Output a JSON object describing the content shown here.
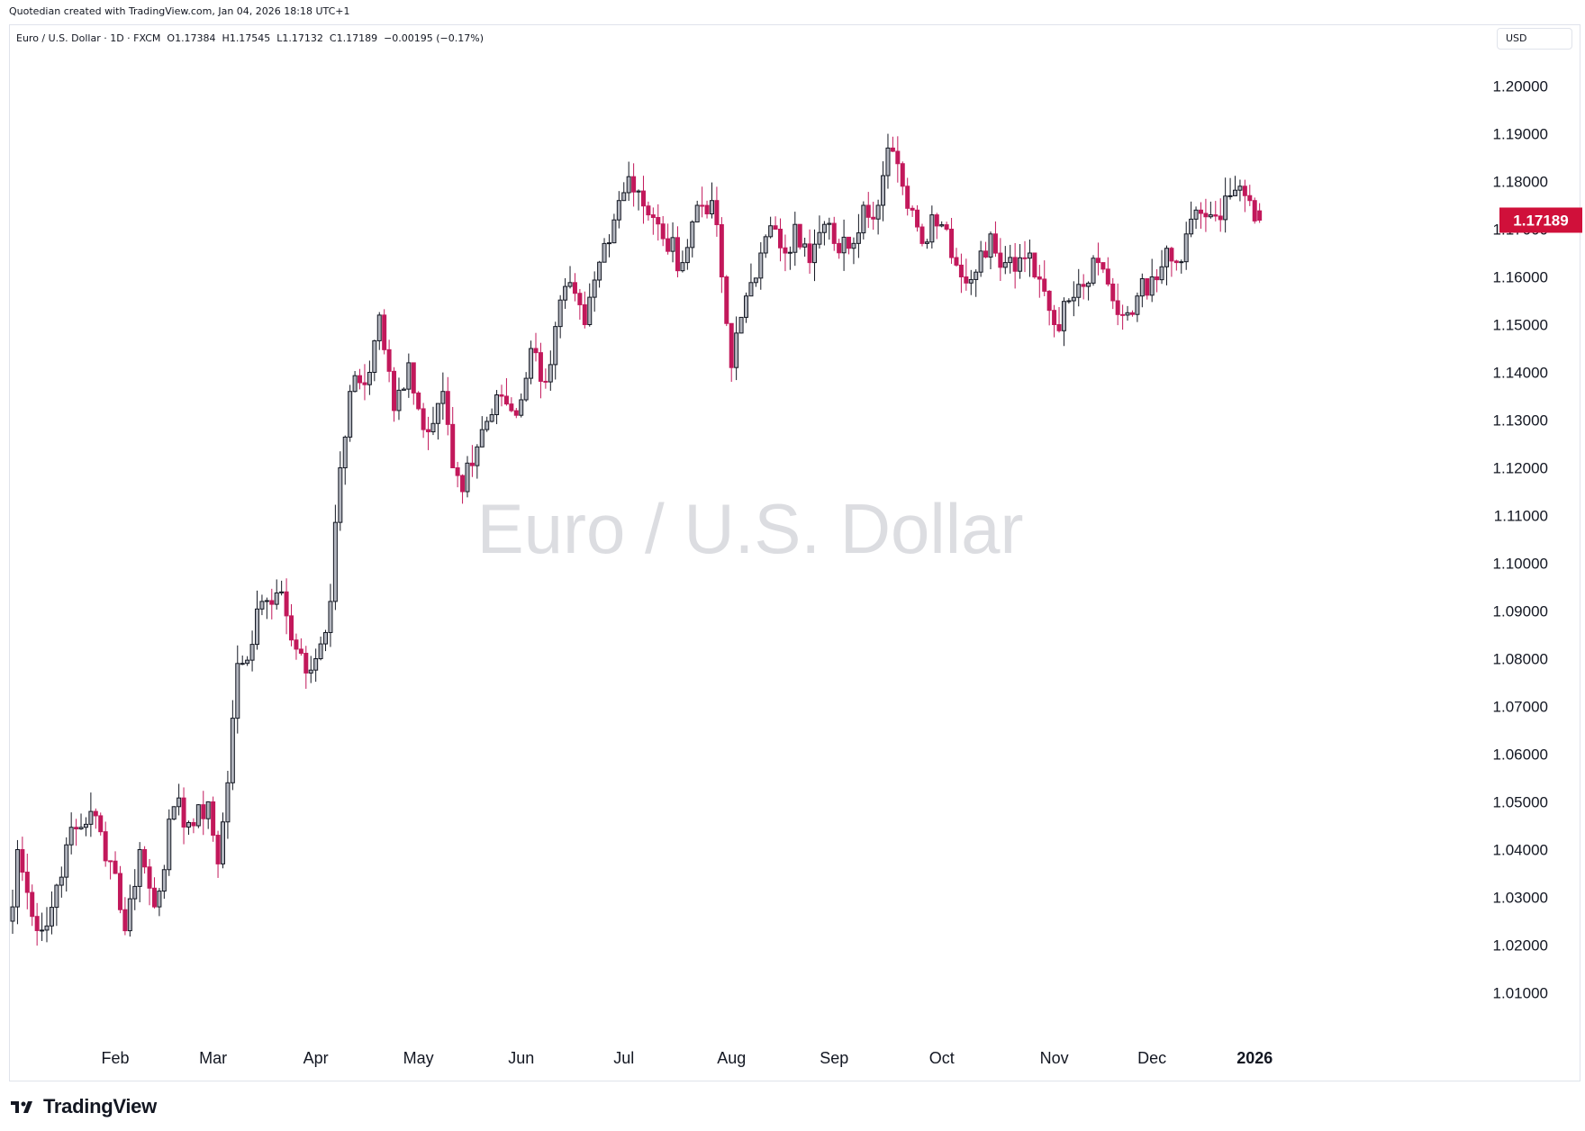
{
  "header": {
    "credit": "Quotedian created with TradingView.com, Jan 04, 2026 18:18 UTC+1",
    "legend": "Euro / U.S. Dollar · 1D · FXCM  O1.17384  H1.17545  L1.17132  C1.17189  −0.00195 (−0.17%)",
    "currency": "USD"
  },
  "watermark": "Euro / U.S. Dollar",
  "footer": {
    "brand": "TradingView",
    "logo_icon": "tradingview-logo-icon"
  },
  "colors": {
    "up_body": "#b2b5be",
    "up_border": "#131722",
    "down": "#c2185b",
    "last_price_bg": "#d0103a",
    "grid": "#ffffff",
    "text": "#131722"
  },
  "chart_data": {
    "type": "candlestick",
    "symbol": "Euro / U.S. Dollar",
    "interval": "1D",
    "broker": "FXCM",
    "last": {
      "open": 1.17384,
      "high": 1.17545,
      "low": 1.17132,
      "close": 1.17189,
      "change": -0.00195,
      "change_pct": -0.17,
      "label": "1.17189"
    },
    "ylim": [
      1.0,
      1.21
    ],
    "y_ticks": [
      "1.01000",
      "1.02000",
      "1.03000",
      "1.04000",
      "1.05000",
      "1.06000",
      "1.07000",
      "1.08000",
      "1.09000",
      "1.10000",
      "1.11000",
      "1.12000",
      "1.13000",
      "1.14000",
      "1.15000",
      "1.16000",
      "1.17000",
      "1.18000",
      "1.19000",
      "1.20000"
    ],
    "x_ticks": [
      {
        "label": "Feb",
        "index": 21,
        "bold": false
      },
      {
        "label": "Mar",
        "index": 41,
        "bold": false
      },
      {
        "label": "Apr",
        "index": 62,
        "bold": false
      },
      {
        "label": "May",
        "index": 83,
        "bold": false
      },
      {
        "label": "Jun",
        "index": 104,
        "bold": false
      },
      {
        "label": "Jul",
        "index": 125,
        "bold": false
      },
      {
        "label": "Aug",
        "index": 147,
        "bold": false
      },
      {
        "label": "Sep",
        "index": 168,
        "bold": false
      },
      {
        "label": "Oct",
        "index": 190,
        "bold": false
      },
      {
        "label": "Nov",
        "index": 213,
        "bold": false
      },
      {
        "label": "Dec",
        "index": 233,
        "bold": false
      },
      {
        "label": "2026",
        "index": 254,
        "bold": true
      }
    ],
    "anchors": [
      [
        0,
        1.028
      ],
      [
        1,
        1.04
      ],
      [
        4,
        1.026
      ],
      [
        7,
        1.024
      ],
      [
        11,
        1.041
      ],
      [
        16,
        1.048
      ],
      [
        21,
        1.035
      ],
      [
        23,
        1.023
      ],
      [
        26,
        1.04
      ],
      [
        29,
        1.028
      ],
      [
        33,
        1.049
      ],
      [
        37,
        1.045
      ],
      [
        40,
        1.05
      ],
      [
        42,
        1.037
      ],
      [
        44,
        1.054
      ],
      [
        46,
        1.079
      ],
      [
        49,
        1.083
      ],
      [
        51,
        1.092
      ],
      [
        55,
        1.094
      ],
      [
        58,
        1.082
      ],
      [
        60,
        1.077
      ],
      [
        62,
        1.08
      ],
      [
        65,
        1.092
      ],
      [
        67,
        1.12
      ],
      [
        69,
        1.136
      ],
      [
        73,
        1.14
      ],
      [
        75,
        1.152
      ],
      [
        78,
        1.132
      ],
      [
        81,
        1.142
      ],
      [
        84,
        1.128
      ],
      [
        88,
        1.136
      ],
      [
        90,
        1.12
      ],
      [
        92,
        1.115
      ],
      [
        96,
        1.128
      ],
      [
        100,
        1.135
      ],
      [
        103,
        1.131
      ],
      [
        106,
        1.145
      ],
      [
        109,
        1.138
      ],
      [
        113,
        1.158
      ],
      [
        117,
        1.15
      ],
      [
        121,
        1.167
      ],
      [
        124,
        1.176
      ],
      [
        126,
        1.181
      ],
      [
        128,
        1.178
      ],
      [
        130,
        1.173
      ],
      [
        133,
        1.168
      ],
      [
        137,
        1.163
      ],
      [
        140,
        1.175
      ],
      [
        143,
        1.176
      ],
      [
        145,
        1.16
      ],
      [
        147,
        1.141
      ],
      [
        150,
        1.156
      ],
      [
        153,
        1.165
      ],
      [
        156,
        1.17
      ],
      [
        158,
        1.165
      ],
      [
        160,
        1.171
      ],
      [
        163,
        1.163
      ],
      [
        166,
        1.171
      ],
      [
        168,
        1.167
      ],
      [
        171,
        1.166
      ],
      [
        174,
        1.175
      ],
      [
        177,
        1.175
      ],
      [
        179,
        1.187
      ],
      [
        182,
        1.179
      ],
      [
        184,
        1.174
      ],
      [
        186,
        1.167
      ],
      [
        188,
        1.173
      ],
      [
        191,
        1.17
      ],
      [
        194,
        1.16
      ],
      [
        197,
        1.161
      ],
      [
        200,
        1.169
      ],
      [
        203,
        1.163
      ],
      [
        206,
        1.164
      ],
      [
        208,
        1.165
      ],
      [
        211,
        1.157
      ],
      [
        213,
        1.15
      ],
      [
        216,
        1.155
      ],
      [
        219,
        1.158
      ],
      [
        222,
        1.163
      ],
      [
        225,
        1.155
      ],
      [
        227,
        1.152
      ],
      [
        230,
        1.156
      ],
      [
        233,
        1.16
      ],
      [
        236,
        1.166
      ],
      [
        238,
        1.163
      ],
      [
        240,
        1.169
      ],
      [
        242,
        1.174
      ],
      [
        245,
        1.173
      ],
      [
        247,
        1.172
      ],
      [
        249,
        1.177
      ],
      [
        251,
        1.179
      ],
      [
        253,
        1.176
      ],
      [
        255,
        1.172
      ]
    ]
  }
}
